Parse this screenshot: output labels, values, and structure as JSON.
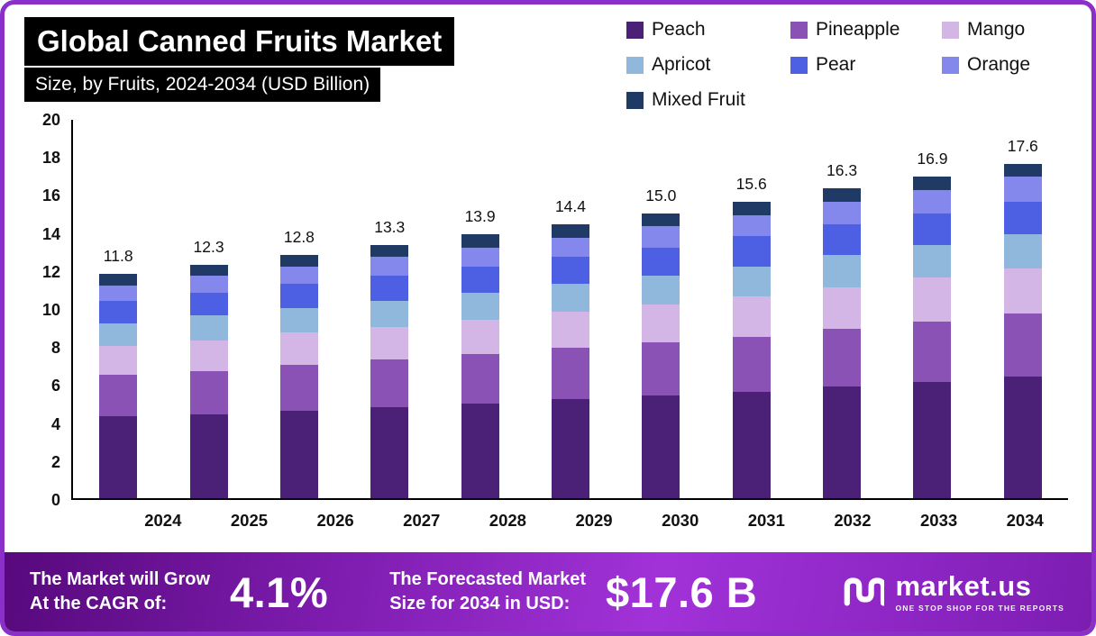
{
  "chart_data": {
    "type": "bar",
    "stacked": true,
    "title": "Global Canned Fruits Market",
    "subtitle": "Size, by Fruits, 2024-2034 (USD Billion)",
    "xlabel": "",
    "ylabel": "USD Billion",
    "ylim": [
      0,
      20
    ],
    "yticks": [
      0,
      2,
      4,
      6,
      8,
      10,
      12,
      14,
      16,
      18,
      20
    ],
    "grid": false,
    "legend_position": "top-right",
    "categories": [
      "2024",
      "2025",
      "2026",
      "2027",
      "2028",
      "2029",
      "2030",
      "2031",
      "2032",
      "2033",
      "2034"
    ],
    "series": [
      {
        "name": "Peach",
        "color": "#4b2077",
        "values": [
          4.3,
          4.4,
          4.6,
          4.8,
          5.0,
          5.2,
          5.4,
          5.6,
          5.9,
          6.1,
          6.4
        ]
      },
      {
        "name": "Pineapple",
        "color": "#8a52b5",
        "values": [
          2.2,
          2.3,
          2.4,
          2.5,
          2.6,
          2.7,
          2.8,
          2.9,
          3.0,
          3.2,
          3.3
        ]
      },
      {
        "name": "Mango",
        "color": "#d3b6e6",
        "values": [
          1.5,
          1.6,
          1.7,
          1.7,
          1.8,
          1.9,
          2.0,
          2.1,
          2.2,
          2.3,
          2.4
        ]
      },
      {
        "name": "Apricot",
        "color": "#8fb8dc",
        "values": [
          1.2,
          1.3,
          1.3,
          1.4,
          1.4,
          1.5,
          1.5,
          1.6,
          1.7,
          1.7,
          1.8
        ]
      },
      {
        "name": "Pear",
        "color": "#4d5fe2",
        "values": [
          1.2,
          1.2,
          1.3,
          1.3,
          1.4,
          1.4,
          1.5,
          1.6,
          1.6,
          1.7,
          1.7
        ]
      },
      {
        "name": "Orange",
        "color": "#8487ec",
        "values": [
          0.8,
          0.9,
          0.9,
          1.0,
          1.0,
          1.0,
          1.1,
          1.1,
          1.2,
          1.2,
          1.3
        ]
      },
      {
        "name": "Mixed Fruit",
        "color": "#203a66",
        "values": [
          0.6,
          0.6,
          0.6,
          0.6,
          0.7,
          0.7,
          0.7,
          0.7,
          0.7,
          0.7,
          0.7
        ]
      }
    ],
    "totals": [
      "11.8",
      "12.3",
      "12.8",
      "13.3",
      "13.9",
      "14.4",
      "15.0",
      "15.6",
      "16.3",
      "16.9",
      "17.6"
    ]
  },
  "banner": {
    "cagr_line1": "The Market will Grow",
    "cagr_line2": "At the CAGR of:",
    "cagr_value": "4.1%",
    "forecast_line1": "The Forecasted Market",
    "forecast_line2": "Size for 2034 in USD:",
    "forecast_value": "$17.6 B",
    "brand_name": "market.us",
    "brand_tagline": "ONE STOP SHOP FOR THE REPORTS"
  }
}
